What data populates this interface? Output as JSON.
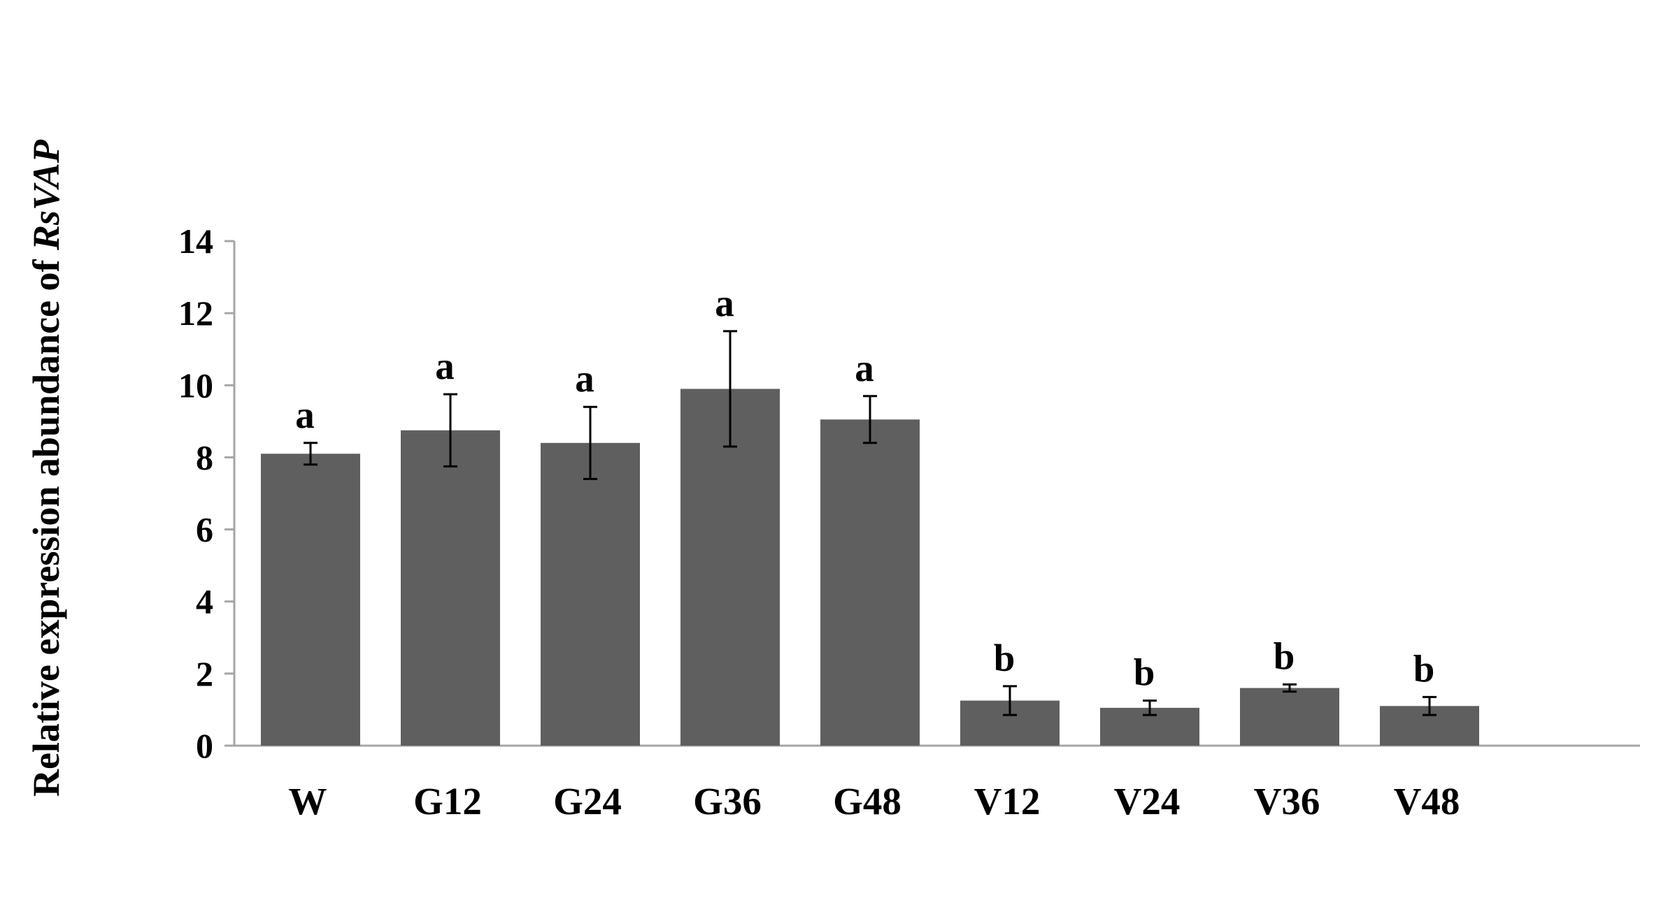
{
  "chart_data": {
    "type": "bar",
    "title": "",
    "xlabel": "",
    "ylabel": {
      "prefix": "Relative expression abundance of ",
      "gene": "RsVAP"
    },
    "ylim": [
      0,
      14
    ],
    "yticks": [
      0,
      2,
      4,
      6,
      8,
      10,
      12,
      14
    ],
    "categories": [
      "W",
      "G12",
      "G24",
      "G36",
      "G48",
      "V12",
      "V24",
      "V36",
      "V48"
    ],
    "values": [
      8.1,
      8.75,
      8.4,
      9.9,
      9.05,
      1.25,
      1.05,
      1.6,
      1.1
    ],
    "errors": [
      0.3,
      1.0,
      1.0,
      1.6,
      0.65,
      0.4,
      0.2,
      0.1,
      0.25
    ],
    "significance": [
      "a",
      "a",
      "a",
      "a",
      "a",
      "b",
      "b",
      "b",
      "b"
    ],
    "bar_color": "#5f5f5f",
    "axis_color": "#a6a6a6",
    "grid": false,
    "legend": "none"
  }
}
